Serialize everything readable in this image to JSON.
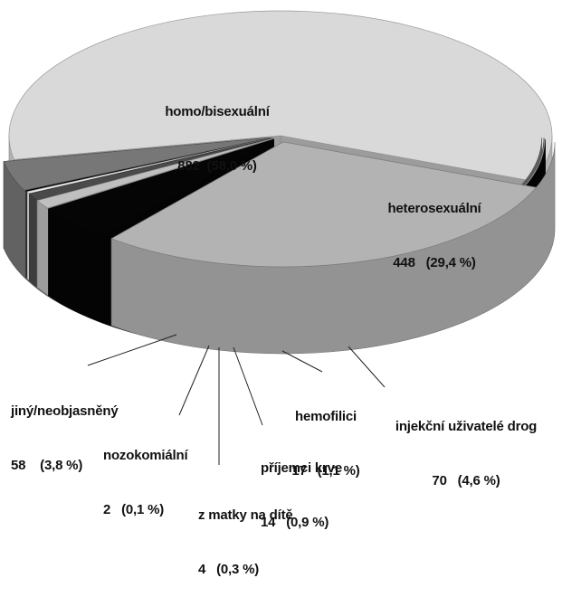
{
  "chart_data": {
    "type": "pie",
    "title": "",
    "style": "3d-exploded",
    "slices": [
      {
        "label": "homo/bisexuální",
        "value": 882,
        "percent_text": "(58,0 %)",
        "color": "#d9d9d9"
      },
      {
        "label": "heterosexuální",
        "value": 448,
        "percent_text": "(29,4 %)",
        "color": "#b3b3b3"
      },
      {
        "label": "injekční uživatelé drog",
        "value": 70,
        "percent_text": "(4,6 %)",
        "color": "#050505"
      },
      {
        "label": "hemofilici",
        "value": 17,
        "percent_text": "(1,1 %)",
        "color": "#bfbfbf"
      },
      {
        "label": "příjemci krve",
        "value": 14,
        "percent_text": "(0,9 %)",
        "color": "#4a4a4a"
      },
      {
        "label": "z matky na dítě",
        "value": 4,
        "percent_text": "(0,3 %)",
        "color": "#ececec"
      },
      {
        "label": "nozokomiální",
        "value": 2,
        "percent_text": "(0,1 %)",
        "color": "#000000"
      },
      {
        "label": "jiný/neobjasněný",
        "value": 58,
        "percent_text": "(3,8 %)",
        "color": "#777777"
      }
    ]
  }
}
